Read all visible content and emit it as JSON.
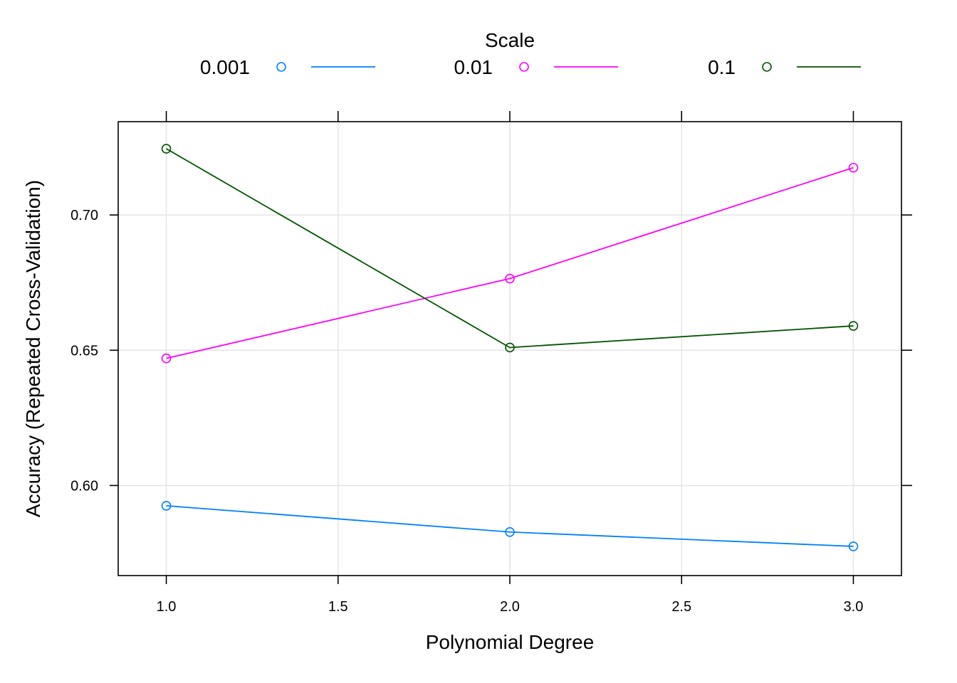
{
  "chart_data": {
    "type": "line",
    "legend": {
      "title": "Scale",
      "position": "top"
    },
    "x": [
      1.0,
      2.0,
      3.0
    ],
    "series": [
      {
        "name": "0.001",
        "values": [
          0.5925,
          0.5828,
          0.5775
        ],
        "color": "#0080ff"
      },
      {
        "name": "0.01",
        "values": [
          0.647,
          0.6765,
          0.7175
        ],
        "color": "#ff00ff"
      },
      {
        "name": "0.1",
        "values": [
          0.7245,
          0.651,
          0.659
        ],
        "color": "#005300"
      }
    ],
    "xlabel": "Polynomial Degree",
    "ylabel": "Accuracy (Repeated Cross-Validation)",
    "xlim": [
      0.86,
      3.14
    ],
    "ylim": [
      0.5667,
      0.7345
    ],
    "xticks": [
      1.0,
      1.5,
      2.0,
      2.5,
      3.0
    ],
    "xtick_labels": [
      "1.0",
      "1.5",
      "2.0",
      "2.5",
      "3.0"
    ],
    "yticks": [
      0.6,
      0.65,
      0.7
    ],
    "ytick_labels": [
      "0.60",
      "0.65",
      "0.70"
    ],
    "grid": true,
    "markers": "open-circle"
  }
}
